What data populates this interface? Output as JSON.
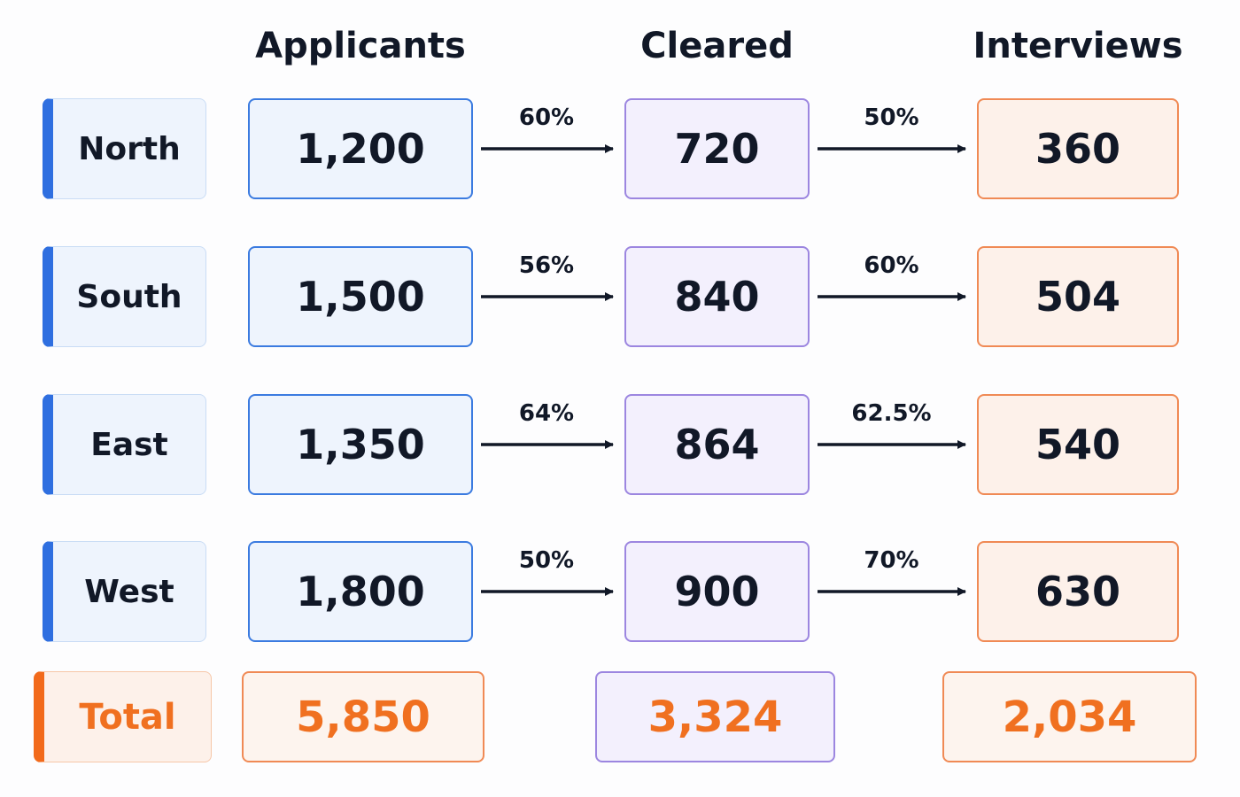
{
  "headers": [
    "Applicants",
    "Cleared",
    "Interviews"
  ],
  "rows": [
    {
      "region": "North",
      "applicants": "1,200",
      "rate1": "60%",
      "cleared": "720",
      "rate2": "50%",
      "interviews": "360"
    },
    {
      "region": "South",
      "applicants": "1,500",
      "rate1": "56%",
      "cleared": "840",
      "rate2": "60%",
      "interviews": "504"
    },
    {
      "region": "East",
      "applicants": "1,350",
      "rate1": "64%",
      "cleared": "864",
      "rate2": "62.5%",
      "interviews": "540"
    },
    {
      "region": "West",
      "applicants": "1,800",
      "rate1": "50%",
      "cleared": "900",
      "rate2": "70%",
      "interviews": "630"
    }
  ],
  "total": {
    "label": "Total",
    "applicants": "5,850",
    "cleared": "3,324",
    "interviews": "2,034"
  }
}
